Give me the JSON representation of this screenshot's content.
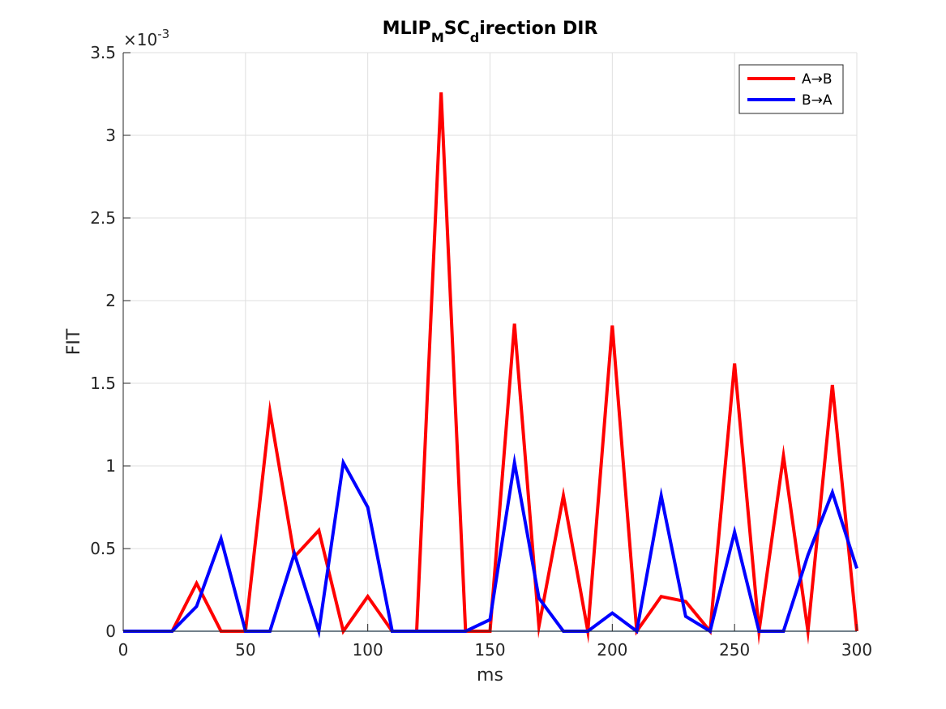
{
  "chart_data": {
    "type": "line",
    "title_parts": {
      "main": "MLIP",
      "sub1": "M",
      "mid": "SC",
      "sub2": "d",
      "tail": "irection DIR"
    },
    "xlabel": "ms",
    "ylabel": "FIT",
    "y_exponent": {
      "prefix": "×10",
      "power": "-3"
    },
    "xlim": [
      0,
      300
    ],
    "ylim": [
      0,
      3.5
    ],
    "xticks": [
      0,
      50,
      100,
      150,
      200,
      250,
      300
    ],
    "yticks": [
      0,
      0.5,
      1,
      1.5,
      2,
      2.5,
      3,
      3.5
    ],
    "ytick_labels": [
      "0",
      "0.5",
      "1",
      "1.5",
      "2",
      "2.5",
      "3",
      "3.5"
    ],
    "grid": true,
    "legend_position": "top-right",
    "x": [
      0,
      10,
      20,
      30,
      40,
      50,
      60,
      70,
      80,
      90,
      100,
      110,
      120,
      130,
      140,
      150,
      160,
      170,
      180,
      190,
      200,
      210,
      220,
      230,
      240,
      250,
      260,
      270,
      280,
      290,
      300
    ],
    "series": [
      {
        "name": "A→B",
        "color": "#ff0000",
        "values": [
          0,
          0,
          0,
          0.29,
          0,
          0,
          1.33,
          0.45,
          0.61,
          0,
          0.21,
          0,
          0,
          3.26,
          0,
          0,
          1.86,
          0.03,
          0.82,
          0,
          1.85,
          0,
          0.21,
          0.18,
          0,
          1.62,
          0,
          1.06,
          0,
          1.49,
          0
        ]
      },
      {
        "name": "B→A",
        "color": "#0000ff",
        "values": [
          0,
          0,
          0,
          0.15,
          0.56,
          0,
          0,
          0.47,
          0,
          1.02,
          0.75,
          0,
          0,
          0,
          0,
          0.07,
          1.02,
          0.2,
          0,
          0,
          0.11,
          0,
          0.82,
          0.09,
          0,
          0.6,
          0,
          0,
          0.46,
          0.84,
          0.38
        ]
      }
    ],
    "baseline_color": "#0072bd"
  }
}
